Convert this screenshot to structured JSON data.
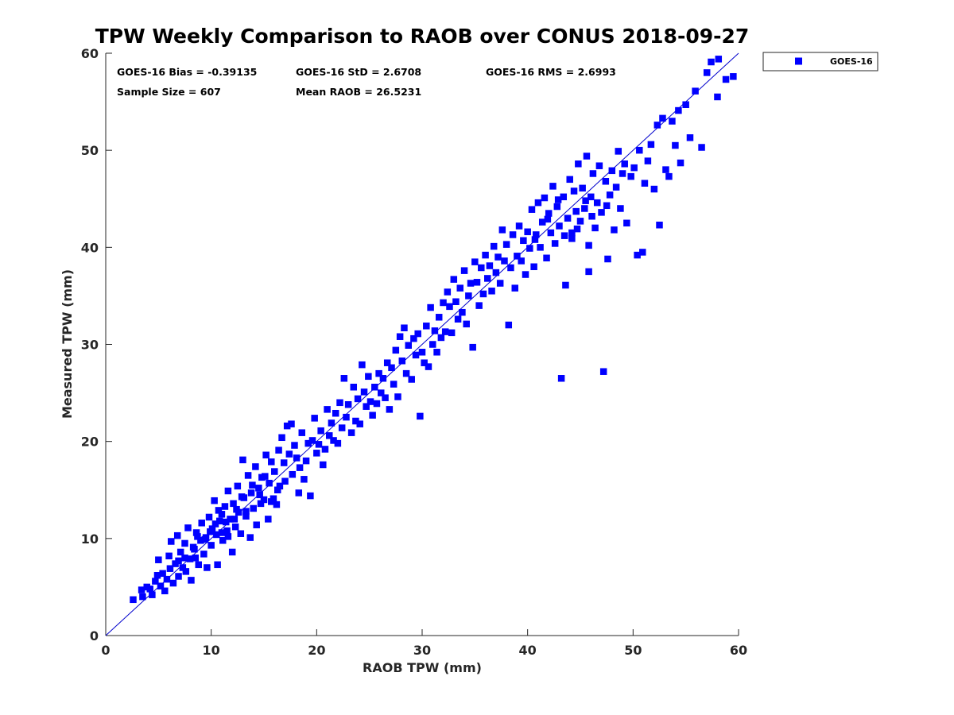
{
  "chart_data": {
    "type": "scatter",
    "title": "TPW Weekly Comparison to RAOB over CONUS 2018-09-27",
    "xlabel": "RAOB TPW (mm)",
    "ylabel": "Measured TPW (mm)",
    "xlim": [
      0,
      60
    ],
    "ylim": [
      0,
      60
    ],
    "xticks": [
      "0",
      "10",
      "20",
      "30",
      "40",
      "50",
      "60"
    ],
    "yticks": [
      "0",
      "10",
      "20",
      "30",
      "40",
      "50",
      "60"
    ],
    "grid": false,
    "legend": {
      "position": "top-right-outside",
      "entries": [
        "GOES-16"
      ]
    },
    "reference_line": {
      "label": "1:1",
      "from": [
        0,
        0
      ],
      "to": [
        60,
        60
      ]
    },
    "stats": {
      "bias": "GOES-16 Bias = -0.39135",
      "std": "GOES-16 StD = 2.6708",
      "rms": "GOES-16 RMS = 2.6993",
      "sample_size": "Sample Size = 607",
      "mean_raob": "Mean RAOB = 26.5231"
    },
    "colors": {
      "marker": "#0000ff",
      "line": "#0000cc",
      "axis": "#262626"
    },
    "series": [
      {
        "name": "GOES-16",
        "marker": "square",
        "points": [
          [
            2.6,
            3.7
          ],
          [
            3.4,
            4.7
          ],
          [
            3.5,
            4.0
          ],
          [
            3.9,
            5.0
          ],
          [
            4.2,
            4.8
          ],
          [
            4.4,
            4.2
          ],
          [
            4.7,
            5.6
          ],
          [
            4.9,
            6.2
          ],
          [
            5.0,
            7.8
          ],
          [
            5.2,
            5.1
          ],
          [
            5.4,
            6.4
          ],
          [
            5.6,
            4.6
          ],
          [
            5.8,
            5.8
          ],
          [
            6.0,
            8.2
          ],
          [
            6.1,
            6.9
          ],
          [
            6.2,
            9.7
          ],
          [
            6.4,
            5.4
          ],
          [
            6.6,
            7.4
          ],
          [
            6.8,
            10.3
          ],
          [
            6.9,
            6.1
          ],
          [
            7.1,
            8.6
          ],
          [
            7.3,
            7.0
          ],
          [
            7.5,
            9.5
          ],
          [
            7.6,
            6.6
          ],
          [
            7.8,
            11.1
          ],
          [
            8.0,
            7.9
          ],
          [
            8.1,
            5.7
          ],
          [
            8.3,
            9.1
          ],
          [
            8.5,
            8.0
          ],
          [
            8.6,
            10.6
          ],
          [
            8.8,
            7.3
          ],
          [
            9.0,
            9.8
          ],
          [
            9.1,
            11.6
          ],
          [
            9.3,
            8.4
          ],
          [
            9.5,
            10.1
          ],
          [
            9.6,
            7.0
          ],
          [
            9.8,
            12.2
          ],
          [
            10.0,
            9.3
          ],
          [
            10.1,
            11.0
          ],
          [
            10.3,
            13.9
          ],
          [
            10.5,
            10.4
          ],
          [
            10.6,
            7.3
          ],
          [
            10.8,
            11.8
          ],
          [
            11.0,
            12.5
          ],
          [
            11.1,
            9.8
          ],
          [
            11.3,
            13.3
          ],
          [
            11.5,
            10.8
          ],
          [
            11.6,
            14.9
          ],
          [
            11.8,
            12.0
          ],
          [
            12.0,
            8.6
          ],
          [
            12.1,
            13.6
          ],
          [
            12.3,
            11.2
          ],
          [
            12.5,
            15.4
          ],
          [
            12.6,
            12.7
          ],
          [
            12.8,
            10.5
          ],
          [
            13.0,
            18.1
          ],
          [
            13.1,
            14.2
          ],
          [
            13.3,
            12.3
          ],
          [
            13.5,
            16.5
          ],
          [
            13.7,
            10.1
          ],
          [
            13.8,
            14.7
          ],
          [
            14.0,
            13.1
          ],
          [
            14.2,
            17.4
          ],
          [
            14.3,
            11.4
          ],
          [
            14.5,
            15.2
          ],
          [
            14.7,
            13.6
          ],
          [
            14.8,
            16.3
          ],
          [
            15.0,
            14.0
          ],
          [
            15.2,
            18.6
          ],
          [
            15.4,
            12.0
          ],
          [
            15.5,
            15.7
          ],
          [
            15.7,
            17.9
          ],
          [
            15.9,
            14.1
          ],
          [
            16.0,
            16.9
          ],
          [
            16.2,
            13.5
          ],
          [
            16.4,
            19.1
          ],
          [
            16.5,
            15.4
          ],
          [
            16.7,
            20.4
          ],
          [
            16.9,
            17.8
          ],
          [
            17.0,
            15.9
          ],
          [
            17.2,
            21.6
          ],
          [
            17.4,
            18.7
          ],
          [
            17.6,
            21.8
          ],
          [
            17.7,
            16.6
          ],
          [
            17.9,
            19.6
          ],
          [
            18.1,
            18.3
          ],
          [
            18.3,
            14.7
          ],
          [
            18.4,
            17.3
          ],
          [
            18.6,
            20.9
          ],
          [
            18.8,
            16.1
          ],
          [
            19.0,
            18.0
          ],
          [
            19.2,
            19.8
          ],
          [
            19.4,
            14.4
          ],
          [
            19.6,
            20.1
          ],
          [
            19.8,
            22.4
          ],
          [
            20.0,
            18.8
          ],
          [
            20.2,
            19.7
          ],
          [
            20.4,
            21.1
          ],
          [
            20.6,
            17.6
          ],
          [
            20.8,
            19.2
          ],
          [
            21.0,
            23.3
          ],
          [
            21.2,
            20.6
          ],
          [
            21.4,
            21.9
          ],
          [
            21.6,
            20.1
          ],
          [
            21.8,
            22.9
          ],
          [
            22.0,
            19.8
          ],
          [
            22.2,
            24.0
          ],
          [
            22.4,
            21.4
          ],
          [
            22.6,
            26.5
          ],
          [
            22.8,
            22.5
          ],
          [
            23.0,
            23.8
          ],
          [
            23.3,
            20.9
          ],
          [
            23.5,
            25.6
          ],
          [
            23.7,
            22.1
          ],
          [
            23.9,
            24.4
          ],
          [
            24.1,
            21.8
          ],
          [
            24.3,
            27.9
          ],
          [
            24.5,
            25.1
          ],
          [
            24.7,
            23.6
          ],
          [
            24.9,
            26.7
          ],
          [
            25.1,
            24.1
          ],
          [
            25.3,
            22.7
          ],
          [
            25.5,
            25.6
          ],
          [
            25.7,
            23.9
          ],
          [
            25.9,
            27.0
          ],
          [
            26.1,
            25.0
          ],
          [
            26.3,
            26.5
          ],
          [
            26.5,
            24.5
          ],
          [
            26.7,
            28.1
          ],
          [
            26.9,
            23.3
          ],
          [
            27.1,
            27.6
          ],
          [
            27.3,
            25.9
          ],
          [
            27.5,
            29.4
          ],
          [
            27.7,
            24.6
          ],
          [
            27.9,
            30.8
          ],
          [
            28.1,
            28.3
          ],
          [
            28.3,
            31.7
          ],
          [
            28.5,
            27.0
          ],
          [
            28.7,
            29.9
          ],
          [
            29.0,
            26.4
          ],
          [
            29.2,
            30.6
          ],
          [
            29.4,
            28.9
          ],
          [
            29.6,
            31.1
          ],
          [
            29.8,
            22.6
          ],
          [
            30.0,
            29.2
          ],
          [
            30.2,
            28.1
          ],
          [
            30.4,
            31.9
          ],
          [
            30.6,
            27.7
          ],
          [
            30.8,
            33.8
          ],
          [
            31.0,
            30.0
          ],
          [
            31.2,
            31.4
          ],
          [
            31.4,
            29.2
          ],
          [
            31.6,
            32.8
          ],
          [
            31.8,
            30.7
          ],
          [
            32.0,
            34.3
          ],
          [
            32.2,
            31.3
          ],
          [
            32.4,
            35.4
          ],
          [
            32.6,
            33.9
          ],
          [
            32.8,
            31.2
          ],
          [
            33.0,
            36.7
          ],
          [
            33.2,
            34.4
          ],
          [
            33.4,
            32.6
          ],
          [
            33.6,
            35.8
          ],
          [
            33.8,
            33.3
          ],
          [
            34.0,
            37.6
          ],
          [
            34.2,
            32.1
          ],
          [
            34.4,
            35.0
          ],
          [
            34.6,
            36.3
          ],
          [
            34.8,
            29.7
          ],
          [
            35.0,
            38.5
          ],
          [
            35.2,
            36.4
          ],
          [
            35.4,
            34.0
          ],
          [
            35.6,
            37.9
          ],
          [
            35.8,
            35.2
          ],
          [
            36.0,
            39.2
          ],
          [
            36.2,
            36.8
          ],
          [
            36.4,
            38.1
          ],
          [
            36.6,
            35.5
          ],
          [
            36.8,
            40.1
          ],
          [
            37.0,
            37.4
          ],
          [
            37.2,
            39.0
          ],
          [
            37.4,
            36.3
          ],
          [
            37.6,
            41.8
          ],
          [
            37.8,
            38.6
          ],
          [
            38.0,
            40.3
          ],
          [
            38.2,
            32.0
          ],
          [
            38.4,
            37.9
          ],
          [
            38.6,
            41.3
          ],
          [
            38.8,
            35.8
          ],
          [
            39.0,
            39.1
          ],
          [
            39.2,
            42.2
          ],
          [
            39.4,
            38.6
          ],
          [
            39.6,
            40.7
          ],
          [
            39.8,
            37.2
          ],
          [
            40.0,
            41.6
          ],
          [
            40.2,
            39.9
          ],
          [
            40.4,
            43.9
          ],
          [
            40.6,
            38.0
          ],
          [
            40.8,
            41.3
          ],
          [
            41.0,
            44.6
          ],
          [
            41.2,
            40.0
          ],
          [
            41.4,
            42.6
          ],
          [
            41.6,
            45.1
          ],
          [
            41.8,
            38.9
          ],
          [
            42.0,
            43.5
          ],
          [
            42.2,
            41.5
          ],
          [
            42.4,
            46.3
          ],
          [
            42.6,
            40.4
          ],
          [
            42.8,
            44.2
          ],
          [
            43.0,
            42.2
          ],
          [
            43.2,
            26.5
          ],
          [
            43.4,
            45.2
          ],
          [
            43.6,
            36.1
          ],
          [
            43.8,
            43.0
          ],
          [
            44.0,
            47.0
          ],
          [
            44.2,
            41.5
          ],
          [
            44.4,
            45.8
          ],
          [
            44.6,
            43.7
          ],
          [
            44.8,
            48.6
          ],
          [
            45.0,
            42.7
          ],
          [
            45.2,
            46.1
          ],
          [
            45.4,
            44.0
          ],
          [
            45.6,
            49.4
          ],
          [
            45.8,
            37.5
          ],
          [
            46.0,
            45.2
          ],
          [
            46.2,
            47.6
          ],
          [
            46.4,
            42.0
          ],
          [
            46.6,
            44.6
          ],
          [
            46.8,
            48.4
          ],
          [
            47.0,
            43.6
          ],
          [
            47.2,
            27.2
          ],
          [
            47.4,
            46.8
          ],
          [
            47.6,
            38.8
          ],
          [
            47.8,
            45.4
          ],
          [
            48.0,
            47.9
          ],
          [
            48.2,
            41.8
          ],
          [
            48.4,
            46.2
          ],
          [
            48.6,
            49.9
          ],
          [
            48.8,
            44.0
          ],
          [
            49.0,
            47.6
          ],
          [
            49.2,
            48.6
          ],
          [
            49.4,
            42.5
          ],
          [
            49.8,
            47.3
          ],
          [
            50.1,
            48.2
          ],
          [
            50.4,
            39.2
          ],
          [
            50.6,
            50.0
          ],
          [
            50.9,
            39.5
          ],
          [
            51.1,
            46.6
          ],
          [
            51.4,
            48.9
          ],
          [
            51.7,
            50.6
          ],
          [
            52.0,
            46.0
          ],
          [
            52.3,
            52.6
          ],
          [
            52.5,
            42.3
          ],
          [
            52.8,
            53.3
          ],
          [
            53.1,
            48.0
          ],
          [
            53.4,
            47.3
          ],
          [
            53.7,
            53.0
          ],
          [
            54.0,
            50.5
          ],
          [
            54.3,
            54.1
          ],
          [
            54.5,
            48.7
          ],
          [
            55.0,
            54.7
          ],
          [
            55.4,
            51.3
          ],
          [
            55.9,
            56.1
          ],
          [
            56.5,
            50.3
          ],
          [
            57.0,
            58.0
          ],
          [
            57.4,
            59.1
          ],
          [
            58.0,
            55.5
          ],
          [
            58.1,
            59.4
          ],
          [
            58.8,
            57.3
          ],
          [
            59.5,
            57.6
          ],
          [
            11.0,
            10.6
          ],
          [
            11.4,
            11.7
          ],
          [
            10.7,
            12.9
          ],
          [
            12.4,
            13.0
          ],
          [
            9.9,
            10.7
          ],
          [
            13.3,
            12.8
          ],
          [
            12.9,
            14.3
          ],
          [
            8.4,
            8.9
          ],
          [
            7.5,
            8.0
          ],
          [
            6.9,
            7.7
          ],
          [
            44.2,
            40.9
          ],
          [
            45.5,
            44.8
          ],
          [
            46.1,
            43.2
          ],
          [
            43.5,
            41.2
          ],
          [
            42.9,
            44.9
          ],
          [
            41.9,
            42.9
          ],
          [
            40.7,
            40.8
          ],
          [
            47.5,
            44.3
          ],
          [
            44.7,
            41.9
          ],
          [
            45.8,
            40.2
          ],
          [
            14.6,
            14.5
          ],
          [
            15.7,
            13.8
          ],
          [
            16.3,
            15.0
          ],
          [
            13.9,
            15.5
          ],
          [
            15.1,
            16.4
          ],
          [
            12.2,
            12.0
          ],
          [
            11.6,
            10.2
          ],
          [
            10.4,
            11.5
          ],
          [
            9.4,
            9.9
          ],
          [
            8.7,
            10.2
          ]
        ]
      }
    ]
  }
}
